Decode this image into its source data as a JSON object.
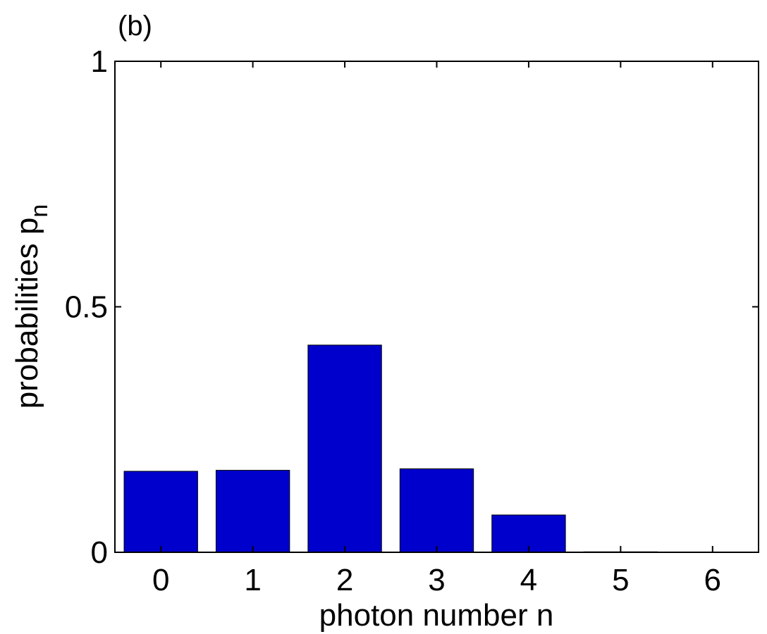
{
  "panel_label": "(b)",
  "chart_data": {
    "type": "bar",
    "categories": [
      "0",
      "1",
      "2",
      "3",
      "4",
      "5",
      "6"
    ],
    "values": [
      0.165,
      0.167,
      0.422,
      0.17,
      0.076,
      0.001,
      0.0
    ],
    "xlabel": "photon number n",
    "ylabel": {
      "main": "probabilities p",
      "subscript": "n"
    },
    "ylim": [
      0,
      1
    ],
    "yticks": [
      {
        "value": 0,
        "label": "0"
      },
      {
        "value": 0.5,
        "label": "0.5"
      },
      {
        "value": 1,
        "label": "1"
      }
    ],
    "bar_color": "#0000cc",
    "grid": false
  }
}
